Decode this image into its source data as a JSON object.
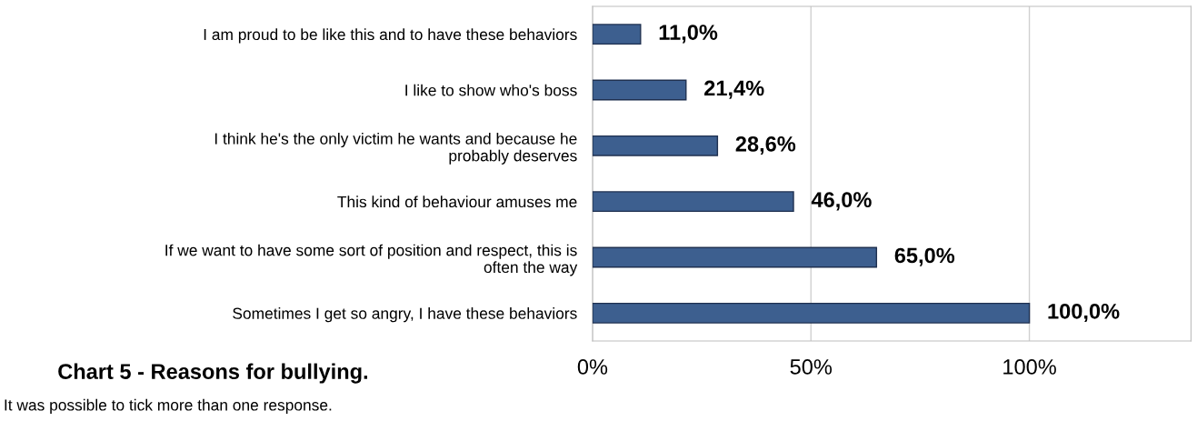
{
  "chart_data": {
    "type": "bar",
    "orientation": "horizontal",
    "title": "Chart 5 - Reasons for bullying.",
    "annotations": [
      "It was possible to tick more than one response."
    ],
    "categories": [
      "I am proud to be like this and to have these behaviors",
      "I like to show who's boss",
      "I think he's the only victim he wants and because he\nprobably deserves",
      "This kind of behaviour amuses me",
      "If we want to have some sort of position and respect, this is\noften the way",
      "Sometimes I get so angry, I have these behaviors"
    ],
    "values": [
      11.0,
      21.4,
      28.6,
      46.0,
      65.0,
      100.0
    ],
    "value_labels": [
      "11,0%",
      "21,4%",
      "28,6%",
      "46,0%",
      "65,0%",
      "100,0%"
    ],
    "color": "#3d5f8f",
    "xlim": [
      0,
      137
    ],
    "xticks": [
      {
        "value": 0,
        "label": "0%"
      },
      {
        "value": 50,
        "label": "50%"
      },
      {
        "value": 100,
        "label": "100%"
      }
    ],
    "grid": "x",
    "legend": false
  }
}
